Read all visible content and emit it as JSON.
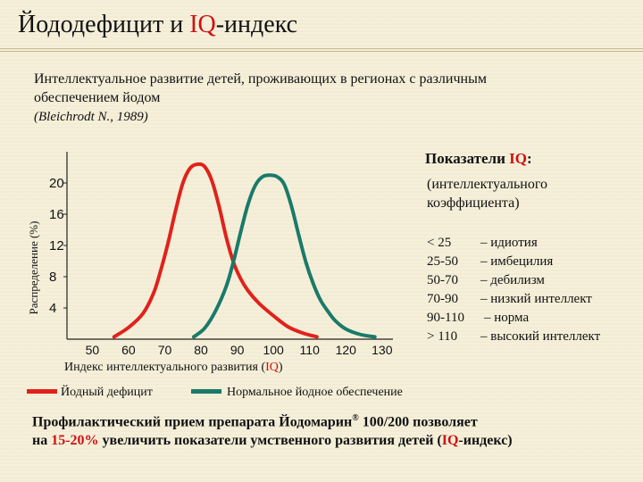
{
  "title": {
    "part1": "Йододефицит и ",
    "part2": "IQ",
    "part3": "-индекс"
  },
  "subtitle": "Интеллектуальное развитие детей, проживающих в регионах с различным обеспечением йодом",
  "source": "(Bleichrodt N., 1989)",
  "iq_panel": {
    "heading_prefix": "Показатели ",
    "heading_mark": "IQ",
    "heading_suffix": ":",
    "subheading": "(интеллектуального коэффициента)",
    "rows": [
      {
        "range": "< 25",
        "label": "– идиотия"
      },
      {
        "range": "25-50",
        "label": "– имбецилия"
      },
      {
        "range": "50-70",
        "label": "– дебилизм"
      },
      {
        "range": "70-90",
        "label": "– низкий интеллект"
      },
      {
        "range": "90-110",
        "label": "– норма"
      },
      {
        "range": "> 110",
        "label": "– высокий интеллект"
      }
    ]
  },
  "legend": [
    {
      "label": "Йодный дефицит",
      "color": "#e0221b"
    },
    {
      "label": "Нормальное йодное обеспечение",
      "color": "#1a7a6a"
    }
  ],
  "bottom_text": {
    "p1": "Профилактический прием препарата Йодомарин",
    "reg": "®",
    "p2": " 100/200 позволяет",
    "p3": "на ",
    "p4": "15-20%",
    "p5": " увеличить показатели умственного развития детей (",
    "p6": "IQ",
    "p7": "-индекс)"
  },
  "colors": {
    "accent": "#d01010",
    "deficit": "#e0221b",
    "normal": "#1a7a6a"
  },
  "chart_data": {
    "type": "line",
    "xlabel_prefix": "Индекс интеллектуального развития (",
    "xlabel_mark": "IQ",
    "xlabel_suffix": ")",
    "ylabel": "Распределение (%)",
    "x_ticks": [
      50,
      60,
      70,
      80,
      90,
      100,
      110,
      120,
      130
    ],
    "y_ticks": [
      4,
      8,
      12,
      16,
      20
    ],
    "xlim": [
      43,
      133
    ],
    "ylim": [
      0,
      24
    ],
    "series": [
      {
        "name": "Йодный дефицит",
        "color": "#e0221b",
        "x": [
          56,
          60,
          64,
          67,
          69,
          71,
          73,
          75,
          77,
          79,
          81,
          83,
          85,
          87,
          89,
          91,
          93,
          96,
          100,
          104,
          108,
          112
        ],
        "y": [
          0.3,
          1.5,
          3.3,
          6,
          9,
          12.5,
          16.5,
          20,
          21.9,
          22.4,
          22.1,
          20.3,
          17,
          13,
          9.8,
          7.7,
          6.2,
          4.6,
          3,
          1.6,
          0.8,
          0.3
        ]
      },
      {
        "name": "Нормальное йодное обеспечение",
        "color": "#1a7a6a",
        "x": [
          78,
          81,
          84,
          87,
          89,
          91,
          93,
          95,
          97,
          99,
          101,
          103,
          105,
          107,
          109,
          111,
          113,
          115,
          117,
          120,
          124,
          128
        ],
        "y": [
          0.3,
          1.4,
          3.6,
          6.8,
          10,
          13.8,
          17.3,
          19.7,
          20.8,
          21,
          20.8,
          19.8,
          17,
          13.3,
          9.8,
          7.1,
          5,
          3.6,
          2.4,
          1.3,
          0.6,
          0.3
        ]
      }
    ]
  }
}
